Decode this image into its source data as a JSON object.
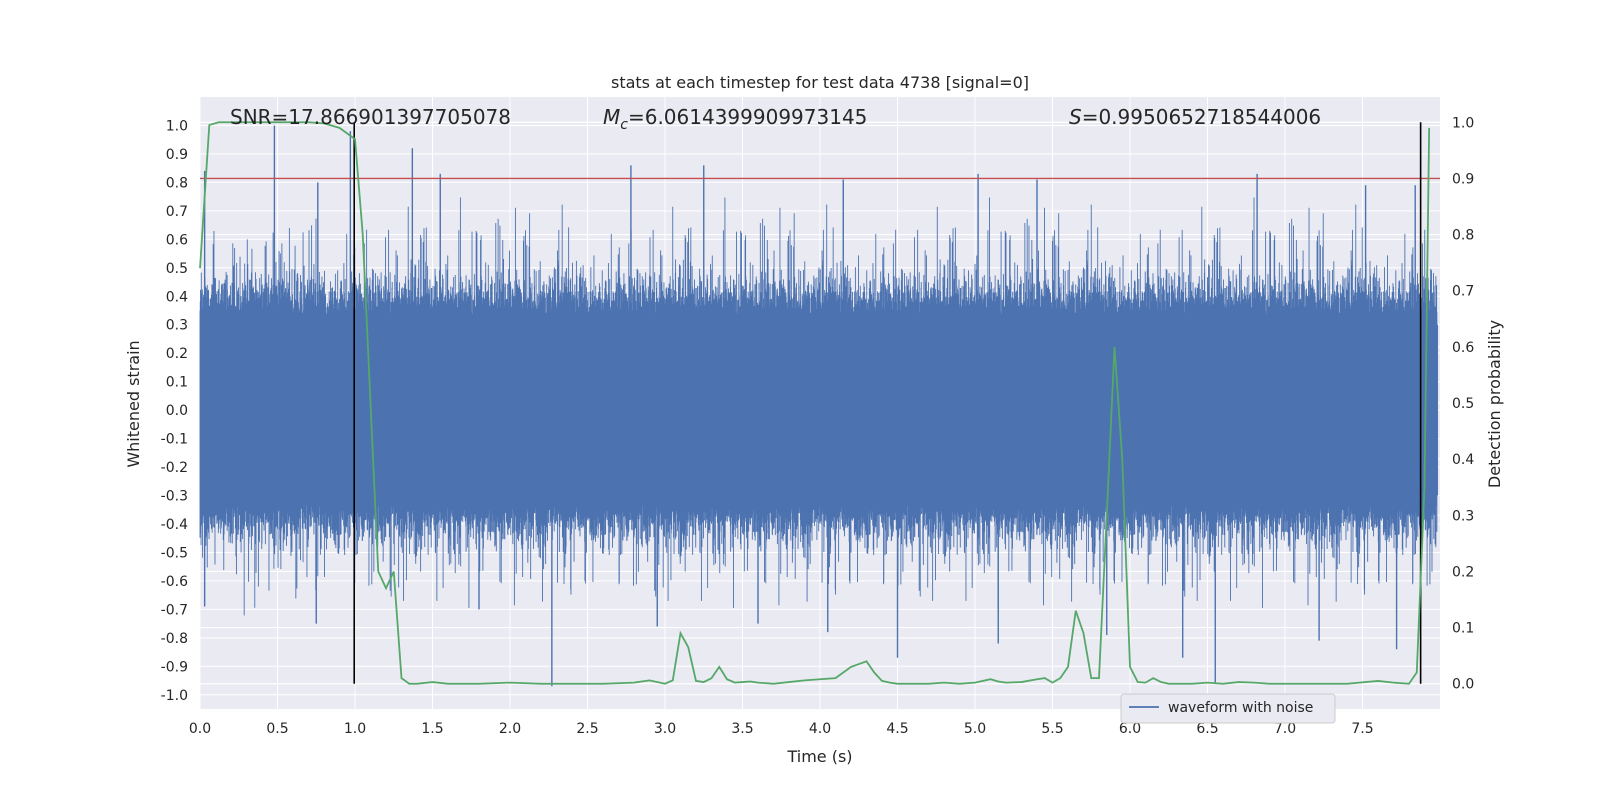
{
  "chart_data": {
    "type": "line",
    "title": "stats at each timestep for test data 4738 [signal=0]",
    "xlabel": "Time (s)",
    "ylabel": "Whitened strain",
    "y2label": "Detection probability",
    "xlim": [
      0,
      8.0
    ],
    "ylim": [
      -1.05,
      1.1
    ],
    "y2lim": [
      -0.045,
      1.045
    ],
    "xticks": [
      "0.0",
      "0.5",
      "1.0",
      "1.5",
      "2.0",
      "2.5",
      "3.0",
      "3.5",
      "4.0",
      "4.5",
      "5.0",
      "5.5",
      "6.0",
      "6.5",
      "7.0",
      "7.5"
    ],
    "yticks": [
      "1.0",
      "0.9",
      "0.8",
      "0.7",
      "0.6",
      "0.5",
      "0.4",
      "0.3",
      "0.2",
      "0.1",
      "0.0",
      "-0.1",
      "-0.2",
      "-0.3",
      "-0.4",
      "-0.5",
      "-0.6",
      "-0.7",
      "-0.8",
      "-0.9",
      "-1.0"
    ],
    "y2ticks": [
      "1.0",
      "0.9",
      "0.8",
      "0.7",
      "0.6",
      "0.5",
      "0.4",
      "0.3",
      "0.2",
      "0.1",
      "0.0"
    ],
    "grid": true,
    "legend_position": "bottom-right",
    "annotations": {
      "snr": "SNR=17.866901397705078",
      "mc_symbol": "M",
      "mc_sub": "c",
      "mc_value": "=6.0614399909973145",
      "s_symbol": "S",
      "s_value": "=0.9950652718544006"
    },
    "threshold": {
      "y2": 0.9,
      "color": "#c44e52"
    },
    "vlines": [
      0.995,
      7.875
    ],
    "series": [
      {
        "name": "waveform with noise",
        "color": "#4c72b0",
        "axis": "left",
        "description_values": "dense whitened noise, amplitude mostly within ±0.4 with spikes up to ±1.0",
        "peaks": [
          [
            0.03,
            0.84
          ],
          [
            0.48,
            1.0
          ],
          [
            0.76,
            0.8
          ],
          [
            0.97,
            0.98
          ],
          [
            1.37,
            0.92
          ],
          [
            1.55,
            0.83
          ],
          [
            2.78,
            0.86
          ],
          [
            3.25,
            0.86
          ],
          [
            4.15,
            0.81
          ],
          [
            5.02,
            0.83
          ],
          [
            5.4,
            0.81
          ],
          [
            6.82,
            0.83
          ],
          [
            7.52,
            0.79
          ],
          [
            7.84,
            0.79
          ]
        ],
        "troughs": [
          [
            0.03,
            -0.69
          ],
          [
            0.75,
            -0.75
          ],
          [
            1.8,
            -0.7
          ],
          [
            2.27,
            -0.97
          ],
          [
            2.95,
            -0.76
          ],
          [
            3.6,
            -0.75
          ],
          [
            4.05,
            -0.78
          ],
          [
            4.5,
            -0.87
          ],
          [
            5.15,
            -0.82
          ],
          [
            5.85,
            -0.79
          ],
          [
            6.34,
            -0.87
          ],
          [
            6.55,
            -0.96
          ],
          [
            7.22,
            -0.81
          ],
          [
            7.72,
            -0.84
          ]
        ]
      },
      {
        "name": "",
        "color": "#55a868",
        "axis": "right",
        "x": [
          0.0,
          0.06,
          0.12,
          0.2,
          0.3,
          0.4,
          0.5,
          0.6,
          0.7,
          0.8,
          0.9,
          0.95,
          1.0,
          1.05,
          1.1,
          1.15,
          1.2,
          1.25,
          1.3,
          1.35,
          1.4,
          1.5,
          1.6,
          1.8,
          2.0,
          2.2,
          2.4,
          2.6,
          2.8,
          2.9,
          3.0,
          3.05,
          3.1,
          3.15,
          3.2,
          3.25,
          3.3,
          3.35,
          3.4,
          3.45,
          3.5,
          3.55,
          3.6,
          3.7,
          3.8,
          3.9,
          4.0,
          4.1,
          4.2,
          4.3,
          4.35,
          4.4,
          4.45,
          4.5,
          4.6,
          4.7,
          4.8,
          4.9,
          5.0,
          5.1,
          5.15,
          5.2,
          5.3,
          5.4,
          5.45,
          5.5,
          5.55,
          5.6,
          5.65,
          5.7,
          5.75,
          5.8,
          5.85,
          5.9,
          5.95,
          6.0,
          6.05,
          6.1,
          6.15,
          6.2,
          6.25,
          6.3,
          6.4,
          6.5,
          6.6,
          6.7,
          6.8,
          6.9,
          7.0,
          7.2,
          7.4,
          7.6,
          7.7,
          7.8,
          7.85,
          7.9,
          7.93
        ],
        "y": [
          0.74,
          0.995,
          1.0,
          1.0,
          1.0,
          1.0,
          1.0,
          1.0,
          1.0,
          0.998,
          0.99,
          0.98,
          0.97,
          0.8,
          0.5,
          0.2,
          0.17,
          0.2,
          0.01,
          0.0,
          0.0,
          0.003,
          0.0,
          0.0,
          0.002,
          0.0,
          0.0,
          0.0,
          0.002,
          0.006,
          0.0,
          0.006,
          0.09,
          0.065,
          0.005,
          0.003,
          0.01,
          0.03,
          0.008,
          0.002,
          0.003,
          0.004,
          0.002,
          0.0,
          0.003,
          0.006,
          0.008,
          0.01,
          0.03,
          0.04,
          0.02,
          0.005,
          0.002,
          0.0,
          0.0,
          0.0,
          0.002,
          0.0,
          0.002,
          0.008,
          0.004,
          0.002,
          0.003,
          0.008,
          0.01,
          0.002,
          0.01,
          0.03,
          0.13,
          0.09,
          0.01,
          0.01,
          0.3,
          0.6,
          0.4,
          0.03,
          0.003,
          0.002,
          0.01,
          0.003,
          0.0,
          0.0,
          0.0,
          0.002,
          0.0,
          0.003,
          0.002,
          0.0,
          0.0,
          0.0,
          0.0,
          0.005,
          0.002,
          0.0,
          0.02,
          0.35,
          0.99
        ]
      }
    ]
  }
}
